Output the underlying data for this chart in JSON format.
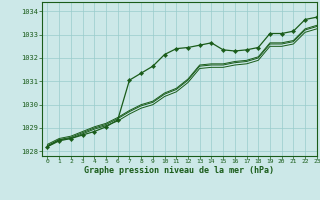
{
  "title": "Graphe pression niveau de la mer (hPa)",
  "background_color": "#cce8e8",
  "grid_color": "#99cccc",
  "line_color": "#1a5c1a",
  "xlim": [
    -0.5,
    23
  ],
  "ylim": [
    1027.8,
    1034.4
  ],
  "yticks": [
    1028,
    1029,
    1030,
    1031,
    1032,
    1033,
    1034
  ],
  "xticks": [
    0,
    1,
    2,
    3,
    4,
    5,
    6,
    7,
    8,
    9,
    10,
    11,
    12,
    13,
    14,
    15,
    16,
    17,
    18,
    19,
    20,
    21,
    22,
    23
  ],
  "series": [
    [
      1028.2,
      1028.5,
      1028.55,
      1028.75,
      1028.95,
      1029.1,
      1029.3,
      1029.6,
      1029.85,
      1030.0,
      1030.35,
      1030.55,
      1030.95,
      1031.55,
      1031.6,
      1031.6,
      1031.7,
      1031.75,
      1031.9,
      1032.5,
      1032.5,
      1032.6,
      1033.1,
      1033.25
    ],
    [
      1028.25,
      1028.5,
      1028.6,
      1028.8,
      1029.0,
      1029.15,
      1029.4,
      1029.7,
      1029.95,
      1030.1,
      1030.45,
      1030.65,
      1031.05,
      1031.65,
      1031.7,
      1031.7,
      1031.8,
      1031.85,
      1032.0,
      1032.6,
      1032.6,
      1032.7,
      1033.2,
      1033.35
    ],
    [
      1028.3,
      1028.55,
      1028.65,
      1028.85,
      1029.05,
      1029.2,
      1029.45,
      1029.75,
      1030.0,
      1030.15,
      1030.5,
      1030.7,
      1031.1,
      1031.7,
      1031.75,
      1031.75,
      1031.85,
      1031.9,
      1032.05,
      1032.65,
      1032.65,
      1032.75,
      1033.25,
      1033.4
    ],
    [
      1028.2,
      1028.45,
      1028.55,
      1028.7,
      1028.85,
      1029.05,
      1029.35,
      1031.05,
      1031.35,
      1031.65,
      1032.15,
      1032.4,
      1032.45,
      1032.55,
      1032.65,
      1032.35,
      1032.3,
      1032.35,
      1032.45,
      1033.05,
      1033.05,
      1033.15,
      1033.65,
      1033.75
    ]
  ],
  "marker_series": 3,
  "figsize": [
    3.2,
    2.0
  ],
  "dpi": 100
}
